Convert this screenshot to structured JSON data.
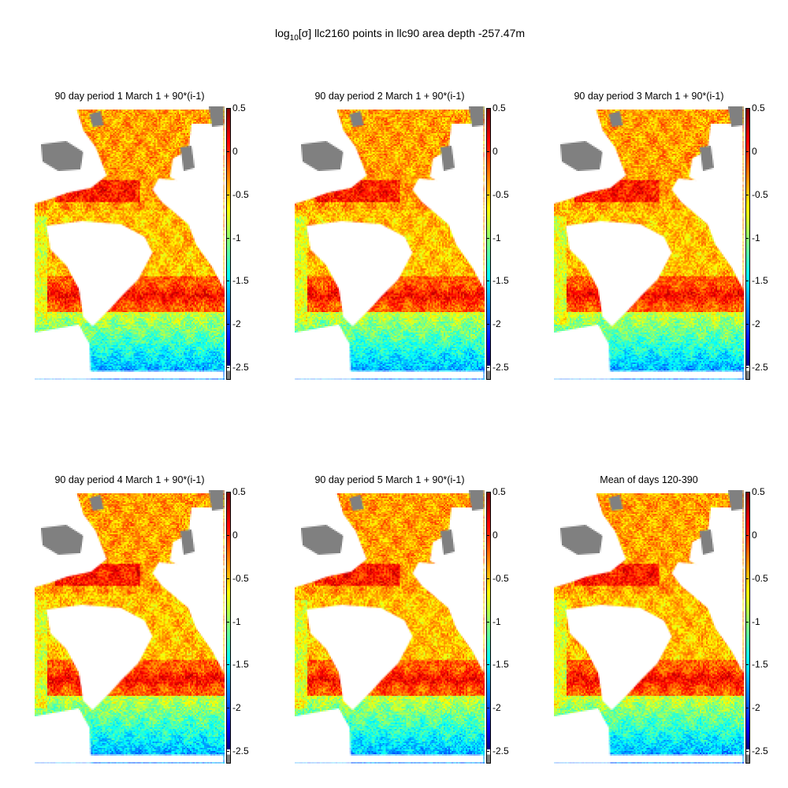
{
  "figure": {
    "title_prefix": "log",
    "title_sub": "10",
    "title_rest": "[σ]  llc2160 points in llc90 area   depth -257.47m"
  },
  "chart_data": {
    "type": "heatmap",
    "title": "log10[σ]  llc2160 points in llc90 area   depth -257.47m",
    "colormap": "jet",
    "clim": [
      -2.5,
      0.5
    ],
    "colorbar_ticks": [
      "0.5",
      "0",
      "-0.5",
      "-1",
      "-1.5",
      "-2",
      "-2.5"
    ],
    "colorbar_tick_values": [
      0.5,
      0,
      -0.5,
      -1,
      -1.5,
      -2,
      -2.5
    ],
    "land_color": "#ffffff",
    "nodata_color": "#808080",
    "panels": [
      {
        "title": "90 day period 1 March 1 + 90*(i-1)"
      },
      {
        "title": "90 day period 2 March 1 + 90*(i-1)"
      },
      {
        "title": "90 day period 3 March 1 + 90*(i-1)"
      },
      {
        "title": "90 day period 4 March 1 + 90*(i-1)"
      },
      {
        "title": "90 day period 5 March 1 + 90*(i-1)"
      },
      {
        "title": "Mean of days 120-390"
      }
    ]
  }
}
